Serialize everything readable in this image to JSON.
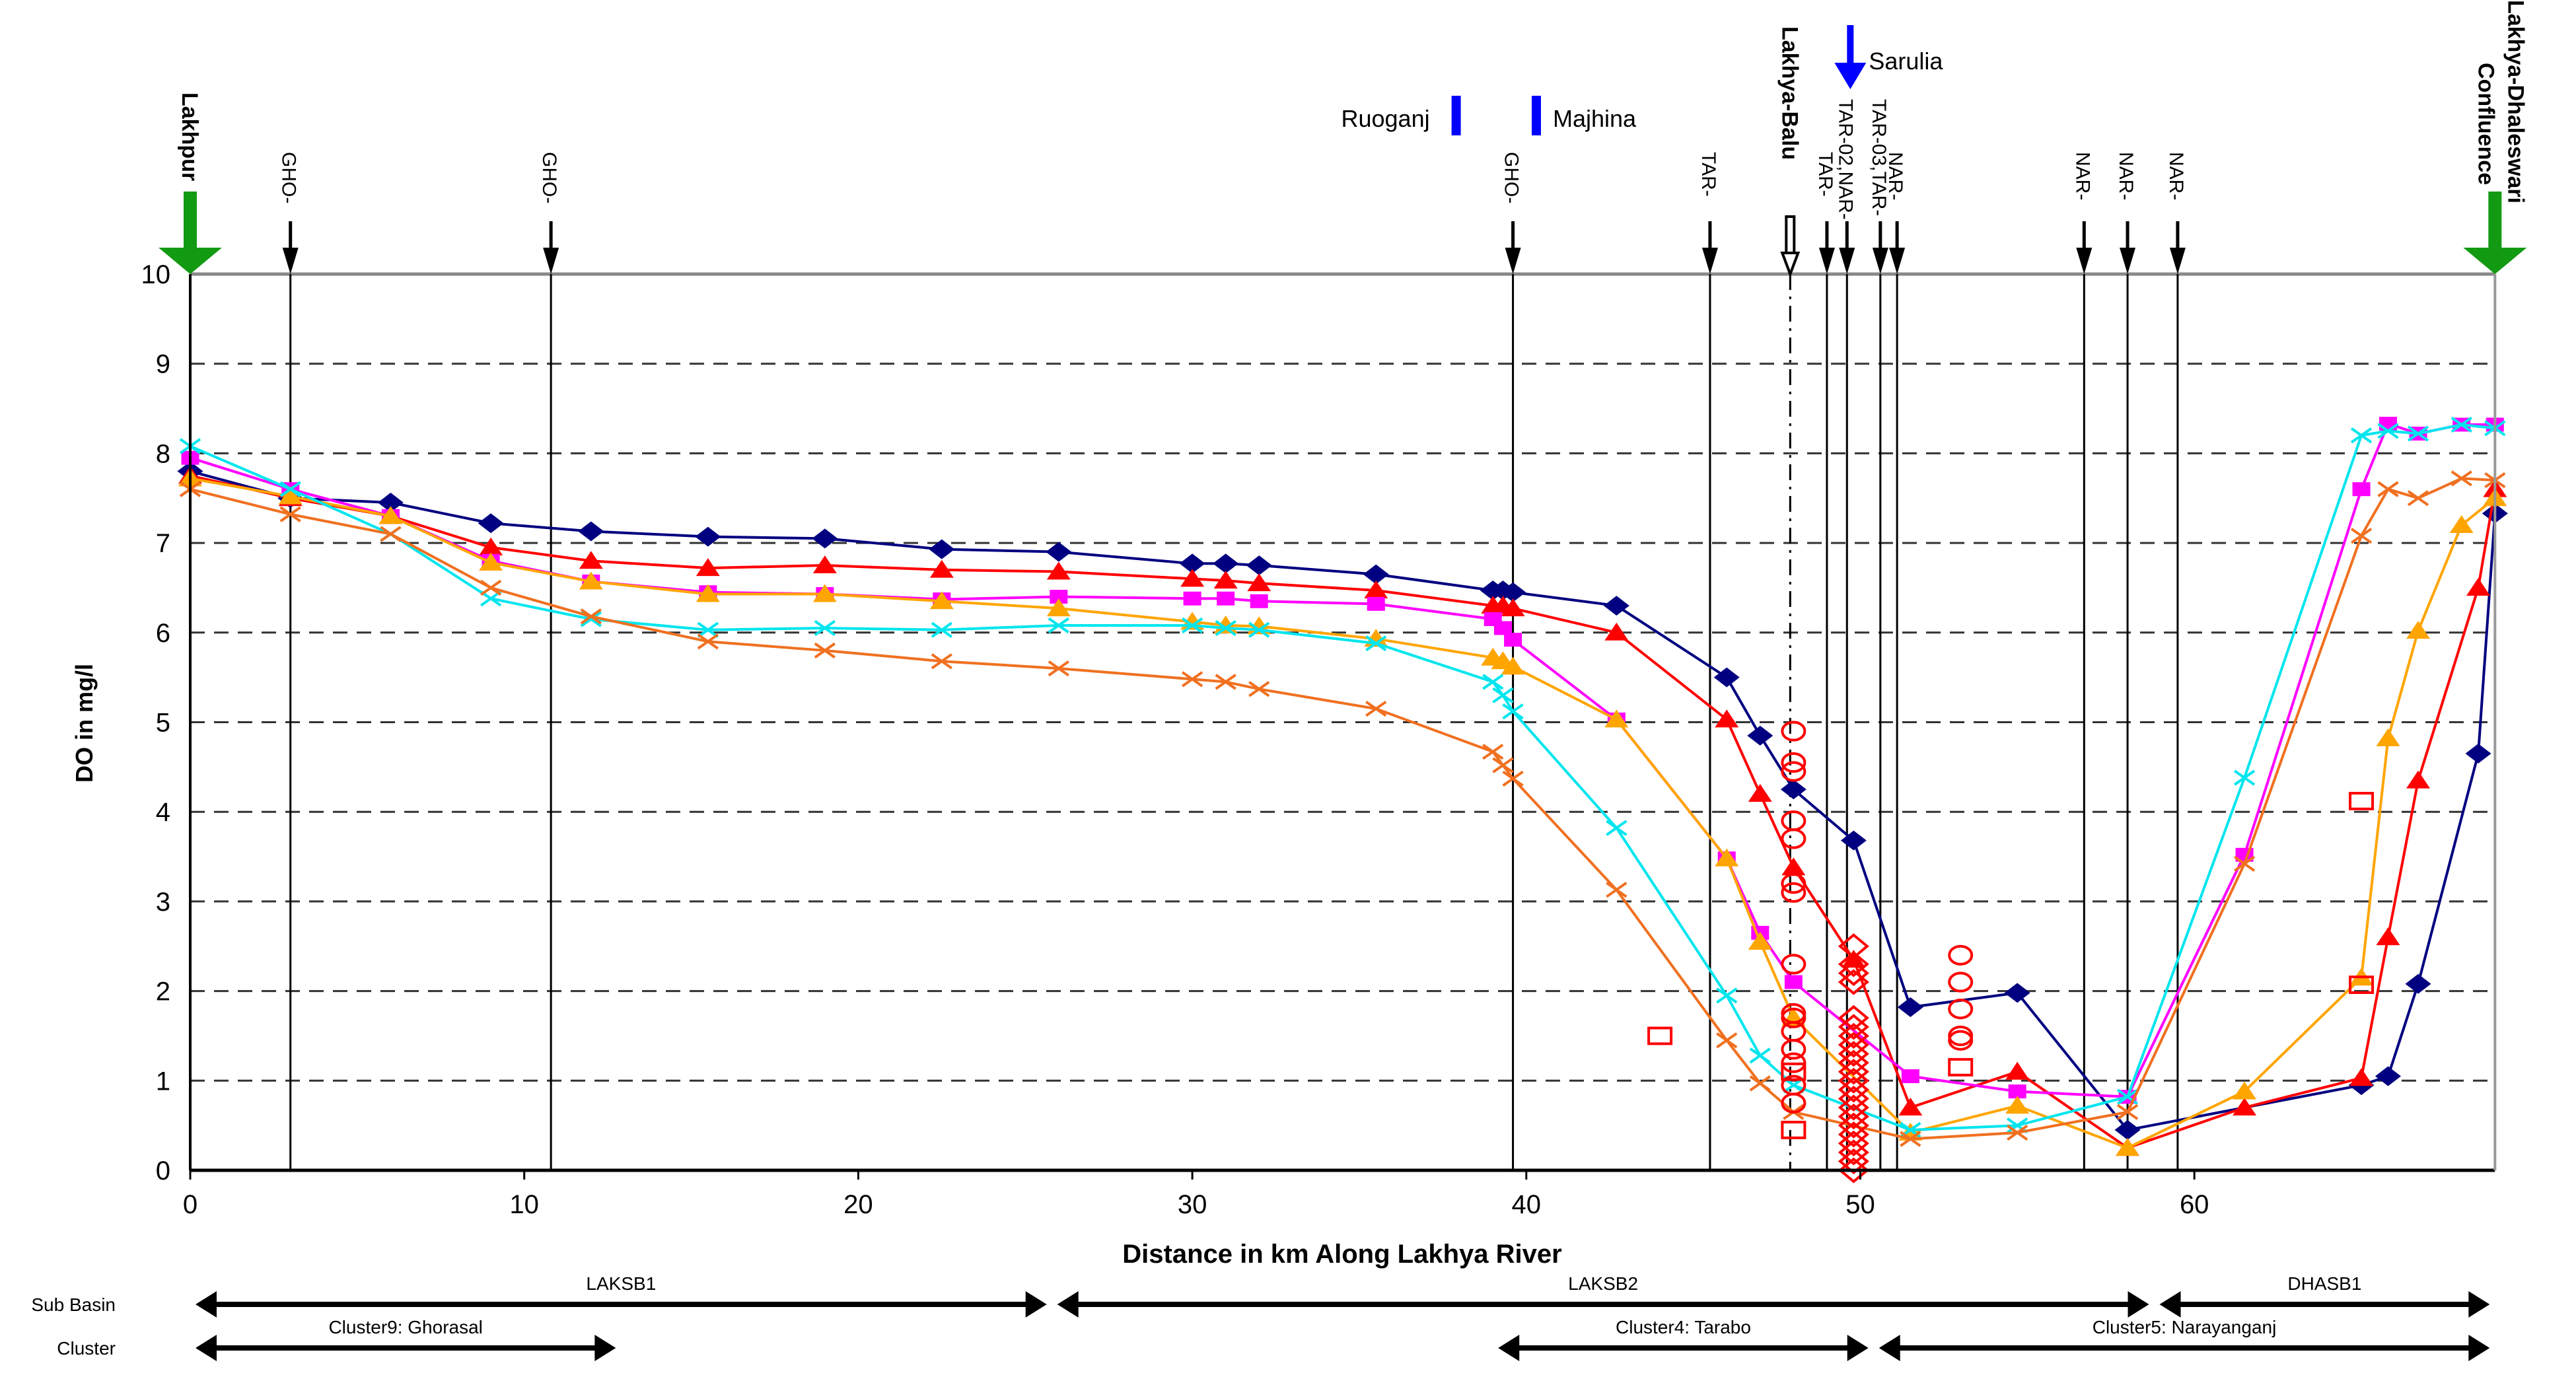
{
  "chart_data": {
    "type": "line",
    "title": "",
    "xlabel": "Distance in km Along Lakhya River",
    "ylabel": "DO in mg/l",
    "xlim": [
      0,
      69
    ],
    "ylim": [
      0,
      10
    ],
    "xticks": [
      "0",
      "10",
      "20",
      "30",
      "40",
      "50",
      "60"
    ],
    "yticks": [
      "0",
      "1",
      "2",
      "3",
      "4",
      "5",
      "6",
      "7",
      "8",
      "9",
      "10"
    ],
    "grid": "horizontal dashed",
    "series": [
      {
        "name": "navy-diamond",
        "color": "#000080",
        "marker": "diamond",
        "x": [
          0,
          3,
          6,
          9,
          12,
          15.5,
          19,
          22.5,
          26,
          30,
          31,
          32,
          35.5,
          39,
          39.3,
          39.6,
          42.7,
          46,
          47,
          48,
          49.8,
          51.5,
          54.7,
          58,
          65,
          65.8,
          66.7,
          68.5,
          69
        ],
        "y": [
          7.8,
          7.5,
          7.45,
          7.22,
          7.13,
          7.07,
          7.05,
          6.93,
          6.9,
          6.77,
          6.77,
          6.75,
          6.65,
          6.47,
          6.47,
          6.45,
          6.3,
          5.5,
          4.85,
          4.25,
          3.68,
          1.82,
          1.98,
          0.45,
          0.95,
          1.05,
          2.08,
          4.65,
          7.33
        ]
      },
      {
        "name": "red-triangle",
        "color": "#ff0000",
        "marker": "triangle",
        "x": [
          0,
          3,
          6,
          9,
          12,
          15.5,
          19,
          22.5,
          26,
          30,
          31,
          32,
          35.5,
          39,
          39.3,
          39.6,
          42.7,
          46,
          47,
          48,
          49.8,
          51.5,
          54.7,
          58,
          61.5,
          65,
          65.8,
          66.7,
          68.5,
          69
        ],
        "y": [
          7.75,
          7.5,
          7.3,
          6.95,
          6.8,
          6.72,
          6.75,
          6.7,
          6.68,
          6.6,
          6.58,
          6.55,
          6.47,
          6.3,
          6.3,
          6.27,
          6.0,
          5.03,
          4.2,
          3.38,
          2.35,
          0.7,
          1.1,
          0.25,
          0.7,
          1.03,
          2.6,
          4.35,
          6.5,
          7.6
        ]
      },
      {
        "name": "magenta-square",
        "color": "#ff00ff",
        "marker": "square",
        "x": [
          0,
          3,
          6,
          9,
          12,
          15.5,
          19,
          22.5,
          26,
          30,
          31,
          32,
          35.5,
          39,
          39.3,
          39.6,
          42.7,
          46,
          47,
          48,
          51.5,
          54.7,
          58,
          61.5,
          65,
          65.8,
          66.7,
          68,
          69
        ],
        "y": [
          7.95,
          7.6,
          7.3,
          6.8,
          6.57,
          6.45,
          6.43,
          6.37,
          6.4,
          6.38,
          6.38,
          6.35,
          6.32,
          6.15,
          6.05,
          5.92,
          5.03,
          3.48,
          2.65,
          2.1,
          1.05,
          0.88,
          0.82,
          3.52,
          7.6,
          8.33,
          8.22,
          8.32,
          8.32
        ]
      },
      {
        "name": "orange-triangle",
        "color": "#ffa500",
        "marker": "triangle",
        "x": [
          0,
          3,
          6,
          9,
          12,
          15.5,
          19,
          22.5,
          26,
          30,
          31,
          32,
          35.5,
          39,
          39.3,
          39.6,
          42.7,
          46,
          47,
          48,
          51.5,
          54.7,
          58,
          61.5,
          65,
          65.8,
          66.7,
          68,
          69
        ],
        "y": [
          7.72,
          7.52,
          7.3,
          6.78,
          6.57,
          6.43,
          6.43,
          6.35,
          6.27,
          6.12,
          6.08,
          6.07,
          5.93,
          5.72,
          5.68,
          5.62,
          5.03,
          3.48,
          2.55,
          1.7,
          0.42,
          0.72,
          0.25,
          0.88,
          2.15,
          4.82,
          6.02,
          7.2,
          7.5
        ]
      },
      {
        "name": "cyan-x",
        "color": "#00e5ee",
        "marker": "x",
        "x": [
          0,
          3,
          6,
          9,
          12,
          15.5,
          19,
          22.5,
          26,
          30,
          31,
          32,
          35.5,
          39,
          39.3,
          39.6,
          42.7,
          46,
          47,
          48,
          51.5,
          54.7,
          58,
          61.5,
          65,
          65.8,
          66.7,
          68,
          69
        ],
        "y": [
          8.08,
          7.6,
          7.1,
          6.38,
          6.15,
          6.03,
          6.05,
          6.03,
          6.08,
          6.08,
          6.05,
          6.03,
          5.88,
          5.45,
          5.3,
          5.12,
          3.82,
          1.95,
          1.28,
          0.95,
          0.45,
          0.5,
          0.82,
          4.38,
          8.2,
          8.25,
          8.22,
          8.32,
          8.28
        ]
      },
      {
        "name": "darkorange-x",
        "color": "#f07020",
        "marker": "x",
        "x": [
          0,
          3,
          6,
          9,
          12,
          15.5,
          19,
          22.5,
          26,
          30,
          31,
          32,
          35.5,
          39,
          39.3,
          39.6,
          42.7,
          46,
          47,
          48,
          51.5,
          54.7,
          58,
          61.5,
          65,
          65.8,
          66.7,
          68,
          69
        ],
        "y": [
          7.6,
          7.32,
          7.1,
          6.5,
          6.18,
          5.9,
          5.8,
          5.68,
          5.6,
          5.48,
          5.45,
          5.37,
          5.15,
          4.67,
          4.52,
          4.37,
          3.13,
          1.45,
          0.97,
          0.65,
          0.35,
          0.42,
          0.65,
          3.42,
          7.08,
          7.6,
          7.5,
          7.72,
          7.7
        ]
      }
    ],
    "scatter": [
      {
        "name": "red-circles",
        "color": "#ff0000",
        "marker": "circle",
        "x": [
          48,
          48,
          48,
          48,
          48,
          48,
          48,
          48,
          48,
          48,
          48,
          48,
          48,
          48,
          48,
          53,
          53,
          53,
          53,
          53
        ],
        "y": [
          4.9,
          4.55,
          4.45,
          3.9,
          3.7,
          3.2,
          3.1,
          2.3,
          1.75,
          1.7,
          1.55,
          1.35,
          1.2,
          0.95,
          0.75,
          2.4,
          2.1,
          1.8,
          1.5,
          1.45
        ]
      },
      {
        "name": "red-squares",
        "color": "#ff0000",
        "marker": "open-square",
        "x": [
          44,
          48,
          48,
          53,
          65,
          65
        ],
        "y": [
          1.5,
          1.1,
          0.45,
          1.15,
          4.12,
          2.07
        ]
      },
      {
        "name": "red-diamonds",
        "color": "#ff0000",
        "marker": "open-diamond",
        "x": [
          49.8,
          49.8,
          49.8,
          49.8,
          49.8,
          49.8,
          49.8,
          49.8,
          49.8,
          49.8,
          49.8,
          49.8,
          49.8,
          49.8,
          49.8,
          49.8,
          49.8,
          49.8,
          49.8,
          49.8,
          49.8,
          49.8
        ],
        "y": [
          2.5,
          2.3,
          2.2,
          2.1,
          1.7,
          1.6,
          1.5,
          1.4,
          1.3,
          1.2,
          1.1,
          1.0,
          0.9,
          0.8,
          0.7,
          0.6,
          0.5,
          0.4,
          0.3,
          0.2,
          0.1,
          0.0
        ]
      }
    ],
    "stations": [
      {
        "km": 0,
        "label": "Lakhpur",
        "style": "green",
        "bold": true
      },
      {
        "km": 3,
        "label": "GHO-",
        "style": "black"
      },
      {
        "km": 10.8,
        "label": "GHO-",
        "style": "black"
      },
      {
        "km": 39.6,
        "label": "GHO-",
        "style": "black"
      },
      {
        "km": 45.5,
        "label": "TAR-",
        "style": "black"
      },
      {
        "km": 47.9,
        "label": "Lakhya-Balu",
        "style": "hollow",
        "bold": true
      },
      {
        "km": 49.0,
        "label": "TAR-",
        "style": "black"
      },
      {
        "km": 49.6,
        "label": "TAR-02,NAR-",
        "style": "black"
      },
      {
        "km": 50.6,
        "label": "TAR-03,TAR-",
        "style": "black"
      },
      {
        "km": 51.1,
        "label": "NAR-",
        "style": "black"
      },
      {
        "km": 56.7,
        "label": "NAR-",
        "style": "black"
      },
      {
        "km": 58.0,
        "label": "NAR-",
        "style": "black"
      },
      {
        "km": 59.5,
        "label": "NAR-",
        "style": "black"
      },
      {
        "km": 69,
        "label": "Lakhya-Dhaleswari Confluence",
        "style": "green",
        "bold": true
      }
    ],
    "tributaries": [
      {
        "km": 37.9,
        "label": "Ruoganj",
        "type": "bar"
      },
      {
        "km": 40.3,
        "label": "Majhina",
        "type": "bar"
      },
      {
        "km": 49.7,
        "label": "Sarulia",
        "type": "arrow"
      }
    ],
    "bands": [
      {
        "row": "Sub Basin",
        "from": 0,
        "to": 25.8,
        "label": "LAKSB1"
      },
      {
        "row": "Sub Basin",
        "from": 25.8,
        "to": 58.8,
        "label": "LAKSB2"
      },
      {
        "row": "Sub Basin",
        "from": 58.8,
        "to": 69,
        "label": "DHASB1"
      },
      {
        "row": "Cluster",
        "from": 0,
        "to": 12.9,
        "label": "Cluster9: Ghorasal"
      },
      {
        "row": "Cluster",
        "from": 39,
        "to": 50.4,
        "label": "Cluster4: Tarabo"
      },
      {
        "row": "Cluster",
        "from": 50.4,
        "to": 69,
        "label": "Cluster5: Narayanganj"
      }
    ],
    "band_rows": [
      "Sub Basin",
      "Cluster"
    ],
    "colors": {
      "blue": "#0000ff",
      "green": "#129a12"
    }
  }
}
